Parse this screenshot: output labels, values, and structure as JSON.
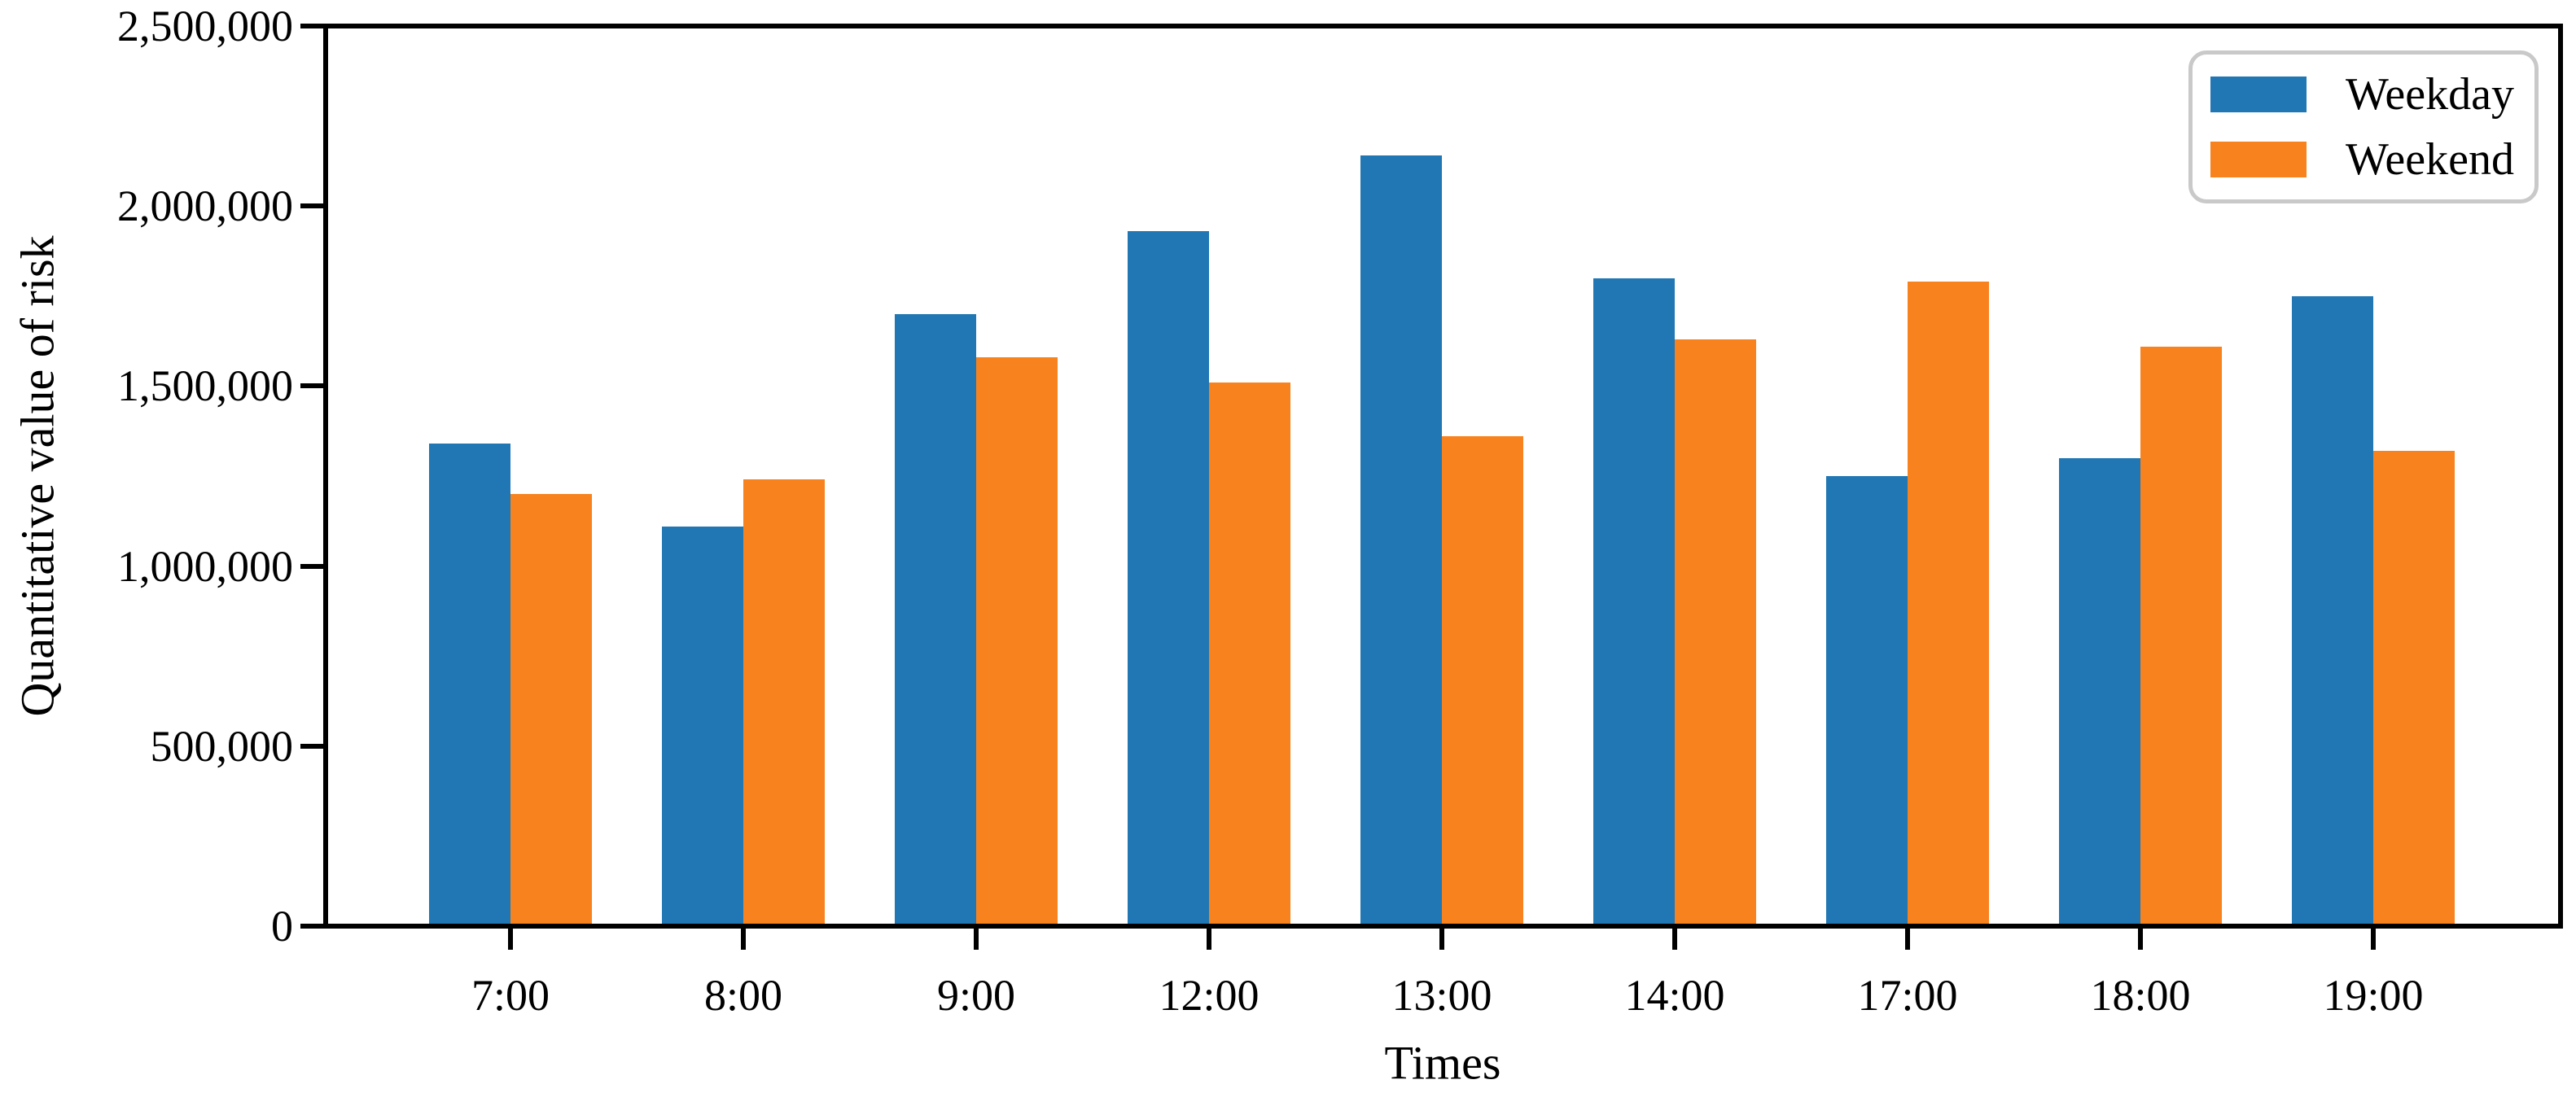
{
  "chart_data": {
    "type": "bar",
    "categories": [
      "7:00",
      "8:00",
      "9:00",
      "12:00",
      "13:00",
      "14:00",
      "17:00",
      "18:00",
      "19:00"
    ],
    "series": [
      {
        "name": "Weekday",
        "color": "#2077b4",
        "values": [
          1340000,
          1110000,
          1700000,
          1930000,
          2140000,
          1800000,
          1250000,
          1300000,
          1750000
        ]
      },
      {
        "name": "Weekend",
        "color": "#f8821e",
        "values": [
          1200000,
          1240000,
          1580000,
          1510000,
          1360000,
          1630000,
          1790000,
          1610000,
          1320000
        ]
      }
    ],
    "title": "",
    "xlabel": "Times",
    "ylabel": "Quantitative value of risk",
    "ylim": [
      0,
      2500000
    ],
    "ytick_step": 500000,
    "ytick_labels": [
      "0",
      "500,000",
      "1,000,000",
      "1,500,000",
      "2,000,000",
      "2,500,000"
    ],
    "grid": false,
    "legend_position": "upper right"
  }
}
